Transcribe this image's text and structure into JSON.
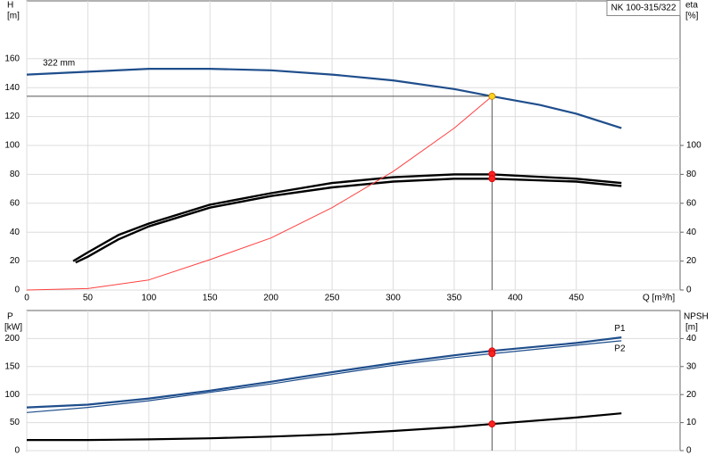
{
  "chart_data": [
    {
      "type": "line",
      "title": "NK 100-315/322",
      "annotation": "322 mm",
      "ylabel": "H",
      "yunit": "[m]",
      "y2label": "eta",
      "y2unit": "[%]",
      "xlabel": "Q [m³/h]",
      "xlim": [
        0,
        535
      ],
      "xticks": [
        0,
        50,
        100,
        150,
        200,
        250,
        300,
        350,
        400,
        450
      ],
      "ylim": [
        0,
        200
      ],
      "yticks": [
        0,
        20,
        40,
        60,
        80,
        100,
        120,
        140,
        160
      ],
      "y2lim": [
        0,
        200
      ],
      "y2ticks": [
        0,
        20,
        40,
        60,
        80,
        100
      ],
      "grid": true,
      "duty_x": 381,
      "series": [
        {
          "color": "#1f4e8c",
          "width": 2.2,
          "marker_color": "#ffd21f",
          "axis": "y",
          "x": [
            0,
            50,
            100,
            150,
            200,
            250,
            300,
            350,
            381,
            420,
            450,
            487
          ],
          "values": [
            149,
            151,
            153,
            153,
            152,
            149,
            145,
            139,
            134,
            128,
            122,
            112
          ]
        },
        {
          "color": "#000000",
          "width": 2.4,
          "marker_color": "#ff2020",
          "axis": "y2",
          "x": [
            38,
            50,
            75,
            100,
            150,
            200,
            250,
            300,
            350,
            381,
            450,
            487
          ],
          "values": [
            20,
            26,
            38,
            46,
            59,
            67,
            74,
            78,
            80,
            80,
            77,
            74
          ]
        },
        {
          "color": "#000000",
          "width": 2.4,
          "marker_color": "#ff2020",
          "axis": "y2",
          "x": [
            40,
            50,
            75,
            100,
            150,
            200,
            250,
            300,
            350,
            381,
            450,
            487
          ],
          "values": [
            19,
            23,
            35,
            44,
            57,
            65,
            71,
            75,
            77,
            77,
            75,
            72
          ]
        },
        {
          "color": "#ff4040",
          "width": 1,
          "axis": "y",
          "x": [
            0,
            50,
            100,
            150,
            200,
            250,
            300,
            350,
            381
          ],
          "values": [
            0,
            1,
            7,
            21,
            36,
            57,
            82,
            112,
            134
          ]
        }
      ]
    },
    {
      "type": "line",
      "ylabel": "P",
      "yunit": "[kW]",
      "y2label": "NPSH",
      "y2unit": "[m]",
      "xlim": [
        0,
        535
      ],
      "ylim": [
        0,
        250
      ],
      "yticks": [
        0,
        50,
        100,
        150,
        200
      ],
      "y2lim": [
        0,
        50
      ],
      "y2ticks": [
        0,
        10,
        20,
        30,
        40
      ],
      "grid": true,
      "duty_x": 381,
      "series": [
        {
          "name": "P1",
          "color": "#1f4e8c",
          "width": 2.2,
          "marker_color": "#ff2020",
          "axis": "y",
          "x": [
            0,
            50,
            100,
            150,
            200,
            250,
            300,
            350,
            381,
            450,
            487
          ],
          "values": [
            77,
            82,
            93,
            107,
            123,
            140,
            156,
            170,
            178,
            192,
            202
          ]
        },
        {
          "name": "P2",
          "color": "#1f4e8c",
          "width": 1.2,
          "marker_color": "#ff2020",
          "axis": "y",
          "x": [
            0,
            50,
            100,
            150,
            200,
            250,
            300,
            350,
            381,
            450,
            487
          ],
          "values": [
            68,
            77,
            89,
            104,
            119,
            136,
            152,
            166,
            173,
            188,
            196
          ]
        },
        {
          "color": "#000000",
          "width": 2.2,
          "marker_color": "#ff2020",
          "axis": "y2",
          "x": [
            0,
            50,
            100,
            150,
            200,
            250,
            300,
            350,
            381,
            450,
            487
          ],
          "values": [
            3.8,
            3.8,
            4,
            4.4,
            5,
            5.8,
            7,
            8.4,
            9.5,
            11.8,
            13.3
          ]
        }
      ]
    }
  ]
}
